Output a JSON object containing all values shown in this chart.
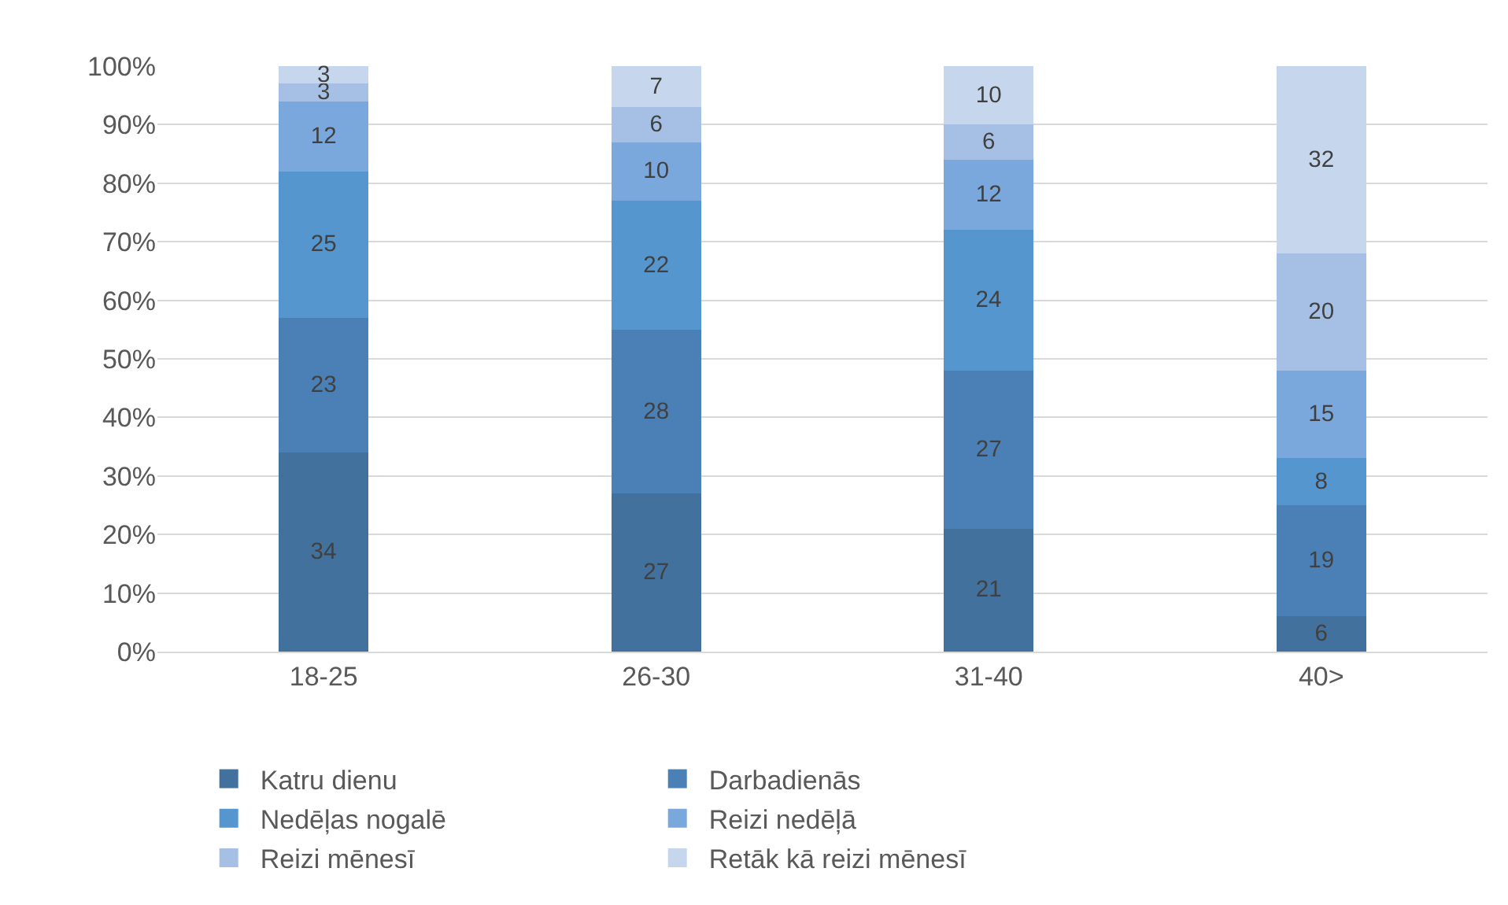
{
  "chart_data": {
    "type": "bar",
    "stacked": true,
    "data_labels": true,
    "grid": "y",
    "legend": "bottom",
    "categories": [
      "18-25",
      "26-30",
      "31-40",
      "40>"
    ],
    "ylim": [
      0,
      100
    ],
    "yticks": [
      {
        "value": 0,
        "label": "0%"
      },
      {
        "value": 10,
        "label": "10%"
      },
      {
        "value": 20,
        "label": "20%"
      },
      {
        "value": 30,
        "label": "30%"
      },
      {
        "value": 40,
        "label": "40%"
      },
      {
        "value": 50,
        "label": "50%"
      },
      {
        "value": 60,
        "label": "60%"
      },
      {
        "value": 70,
        "label": "70%"
      },
      {
        "value": 80,
        "label": "80%"
      },
      {
        "value": 90,
        "label": "90%"
      },
      {
        "value": 100,
        "label": "100%"
      }
    ],
    "series": [
      {
        "name": "Katru dienu",
        "color": "#41719c",
        "values": [
          34,
          27,
          21,
          6
        ]
      },
      {
        "name": "Darbadienās",
        "color": "#4a80b6",
        "values": [
          23,
          28,
          27,
          19
        ]
      },
      {
        "name": "Nedēļas nogalē",
        "color": "#5596cf",
        "values": [
          25,
          22,
          24,
          8
        ]
      },
      {
        "name": "Reizi nedēļā",
        "color": "#7ba8dc",
        "values": [
          12,
          10,
          12,
          15
        ]
      },
      {
        "name": "Reizi mēnesī",
        "color": "#a5c0e4",
        "values": [
          3,
          6,
          6,
          20
        ]
      },
      {
        "name": "Retāk kā reizi mēnesī",
        "color": "#c6d6ed",
        "values": [
          3,
          7,
          10,
          32
        ]
      }
    ]
  }
}
